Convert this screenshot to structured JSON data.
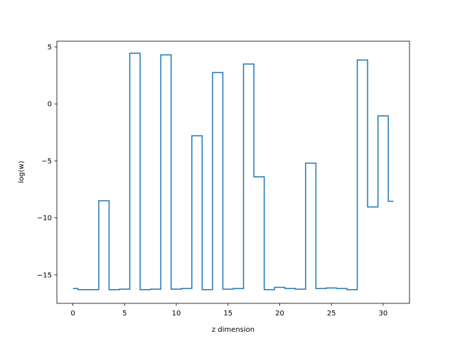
{
  "chart_data": {
    "type": "line",
    "drawstyle": "steps-mid",
    "title": "",
    "xlabel": "z dimension",
    "ylabel": "log(w)",
    "xlim": [
      -1.55,
      32.55
    ],
    "ylim": [
      -17.5,
      5.5
    ],
    "x_ticks": [
      0,
      5,
      10,
      15,
      20,
      25,
      30
    ],
    "x_tick_labels": [
      "0",
      "5",
      "10",
      "15",
      "20",
      "25",
      "30"
    ],
    "y_ticks": [
      5,
      0,
      -5,
      -10,
      -15
    ],
    "y_tick_labels": [
      "5",
      "0",
      "−5",
      "−10",
      "−15"
    ],
    "grid": false,
    "legend": "none",
    "series": [
      {
        "color": "#1f77b4",
        "x": [
          0,
          1,
          2,
          3,
          4,
          5,
          6,
          7,
          8,
          9,
          10,
          11,
          12,
          13,
          14,
          15,
          16,
          17,
          18,
          19,
          20,
          21,
          22,
          23,
          24,
          25,
          26,
          27,
          28,
          29,
          30,
          31
        ],
        "values": [
          -16.2,
          -16.3,
          -16.3,
          -8.5,
          -16.3,
          -16.25,
          4.45,
          -16.3,
          -16.25,
          4.3,
          -16.25,
          -16.2,
          -2.8,
          -16.3,
          2.75,
          -16.25,
          -16.2,
          3.5,
          -6.4,
          -16.3,
          -16.1,
          -16.2,
          -16.25,
          -5.2,
          -16.2,
          -16.15,
          -16.2,
          -16.3,
          3.85,
          -9.05,
          -1.05,
          -8.55
        ]
      }
    ]
  }
}
